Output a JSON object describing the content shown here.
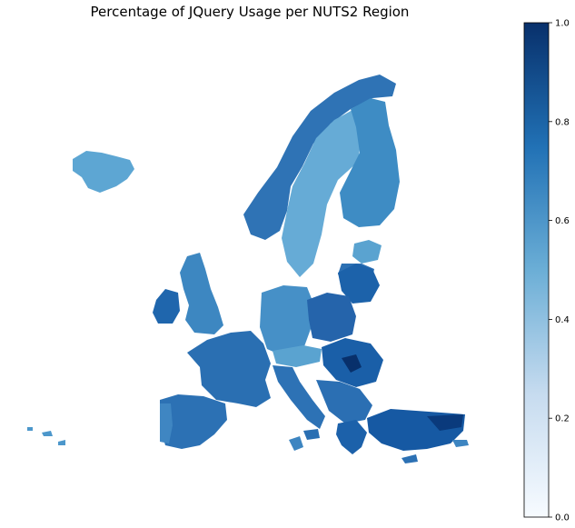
{
  "title": "Percentage of JQuery Usage per NUTS2 Region",
  "colorbar": {
    "min": 0.0,
    "max": 1.0,
    "ticks": [
      "0.0",
      "0.2",
      "0.4",
      "0.6",
      "0.8",
      "1.0"
    ],
    "colormap": "Blues",
    "colors": {
      "low": "#f7fbff",
      "mid": "#6baed6",
      "high": "#08306b"
    }
  },
  "chart_data": {
    "type": "heatmap",
    "title": "Percentage of JQuery Usage per NUTS2 Region",
    "value_range": [
      0.0,
      1.0
    ],
    "regions": [
      {
        "name": "Iceland",
        "value": 0.55
      },
      {
        "name": "Norway",
        "value": 0.72
      },
      {
        "name": "Sweden",
        "value": 0.45
      },
      {
        "name": "Finland",
        "value": 0.62
      },
      {
        "name": "Estonia",
        "value": 0.5
      },
      {
        "name": "Ireland",
        "value": 0.78
      },
      {
        "name": "United Kingdom",
        "value": 0.62
      },
      {
        "name": "France",
        "value": 0.72
      },
      {
        "name": "Spain",
        "value": 0.72
      },
      {
        "name": "Portugal",
        "value": 0.65
      },
      {
        "name": "Germany",
        "value": 0.65
      },
      {
        "name": "Poland",
        "value": 0.78
      },
      {
        "name": "Italy",
        "value": 0.7
      },
      {
        "name": "Greece",
        "value": 0.82
      },
      {
        "name": "Turkey",
        "value": 0.88
      },
      {
        "name": "Romania",
        "value": 0.8
      },
      {
        "name": "Balkans",
        "value": 0.75
      },
      {
        "name": "Lithuania",
        "value": 0.8
      }
    ]
  }
}
